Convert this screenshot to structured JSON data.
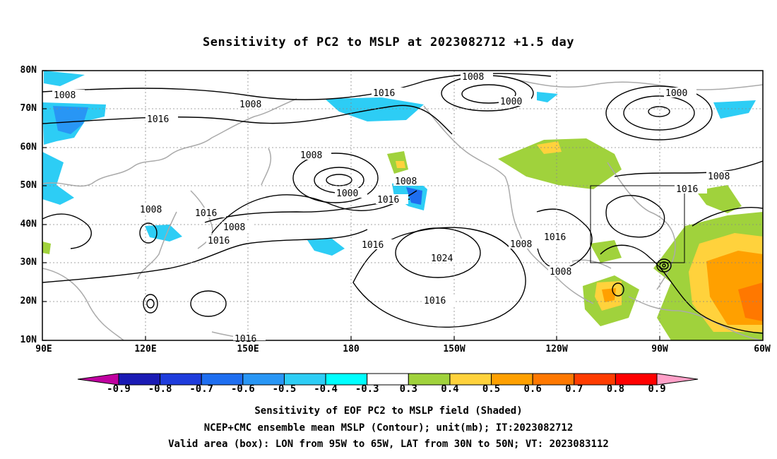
{
  "title": "Sensitivity of PC2 to MSLP at 2023082712 +1.5 day",
  "lat_labels": [
    "80N",
    "70N",
    "60N",
    "50N",
    "40N",
    "30N",
    "20N",
    "10N"
  ],
  "lon_labels": [
    "90E",
    "120E",
    "150E",
    "180",
    "150W",
    "120W",
    "90W",
    "60W"
  ],
  "contour_labels": [
    "1008",
    "1008",
    "1016",
    "1016",
    "1008",
    "1000",
    "1000",
    "1008",
    "1000",
    "1016",
    "1008",
    "1016",
    "1016",
    "1016",
    "1008",
    "1016",
    "1008",
    "1016",
    "1024",
    "1016",
    "1008",
    "1008",
    "1016",
    "1008"
  ],
  "colorbar": {
    "labels": [
      "-0.9",
      "-0.8",
      "-0.7",
      "-0.6",
      "-0.5",
      "-0.4",
      "-0.3",
      "0.3",
      "0.4",
      "0.5",
      "0.6",
      "0.7",
      "0.8",
      "0.9"
    ],
    "colors": [
      "#c000a0",
      "#1a1ab4",
      "#1e3cdc",
      "#1e6ef0",
      "#2896f5",
      "#2dcdf5",
      "#00ffff",
      "#ffffff",
      "#a0d23c",
      "#ffd23c",
      "#ffa000",
      "#ff7800",
      "#ff3c00",
      "#ff0000",
      "#ffa0c8"
    ]
  },
  "captions": [
    "Sensitivity of EOF PC2 to MSLP field (Shaded)",
    "NCEP+CMC ensemble mean MSLP (Contour); unit(mb); IT:2023082712",
    "Valid area (box): LON from 95W to 65W, LAT from 30N to 50N; VT: 2023083112"
  ]
}
